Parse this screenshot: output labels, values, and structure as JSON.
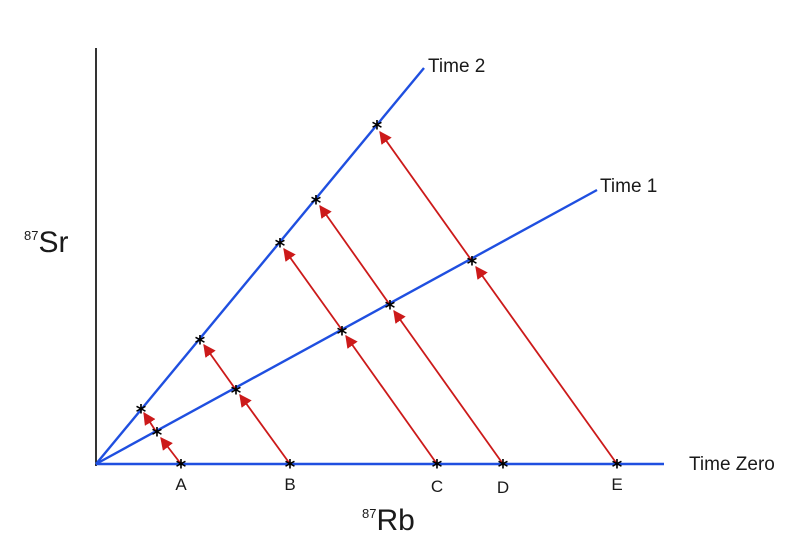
{
  "diagram": {
    "axis_labels": {
      "y": {
        "superscript": "87",
        "text": "Sr"
      },
      "x": {
        "superscript": "87",
        "text": "Rb"
      }
    },
    "isochrons": [
      {
        "label": "Time Zero"
      },
      {
        "label": "Time 1"
      },
      {
        "label": "Time 2"
      }
    ],
    "samples": [
      "A",
      "B",
      "C",
      "D",
      "E"
    ],
    "colors": {
      "isochron": "#1f4fe0",
      "decay_arrow": "#cc1a1a",
      "axis": "#000000",
      "marker": "#000000"
    },
    "marker_glyph": "*"
  }
}
